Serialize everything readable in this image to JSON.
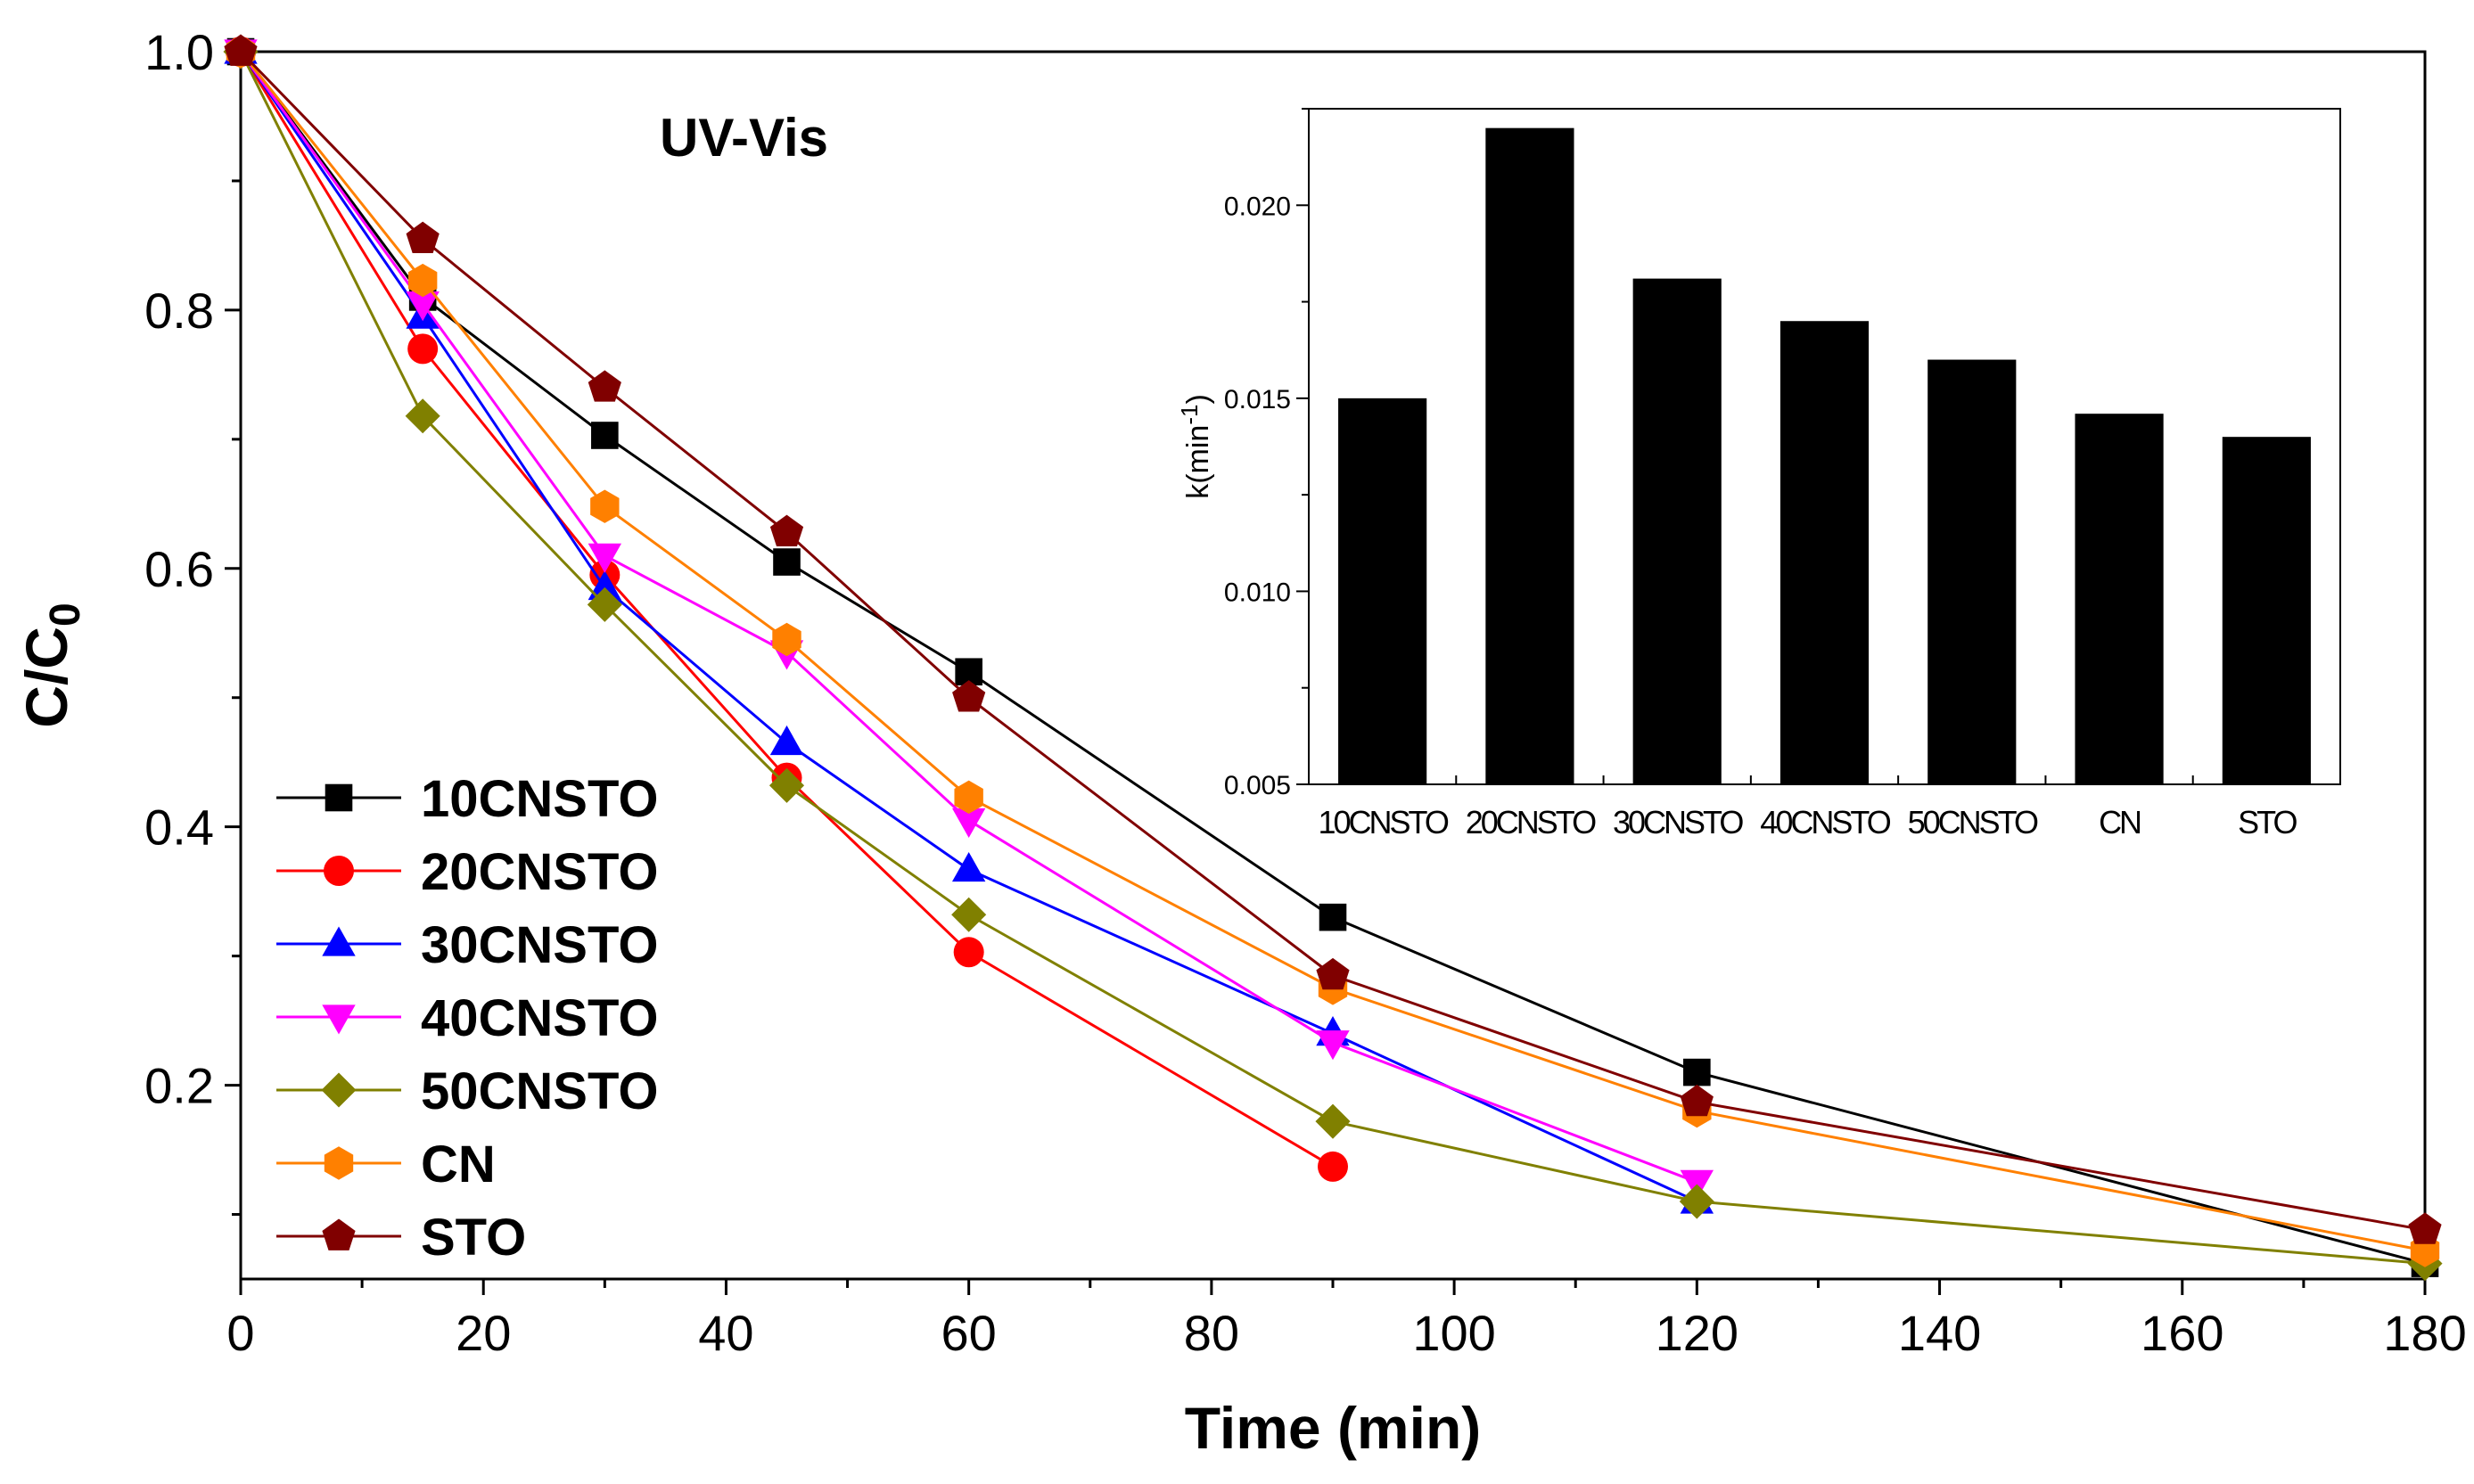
{
  "chart_data": [
    {
      "type": "line",
      "annotation": "UV-Vis",
      "xlabel": "Time (min)",
      "ylabel_main": "C/C",
      "ylabel_sub": "0",
      "xlim": [
        0,
        180
      ],
      "ylim": [
        0.05,
        1.0
      ],
      "x_ticks": [
        0,
        20,
        40,
        60,
        80,
        100,
        120,
        140,
        160,
        180
      ],
      "y_ticks": [
        0.2,
        0.4,
        0.6,
        0.8,
        1.0
      ],
      "x_tick_labels": [
        "0",
        "20",
        "40",
        "60",
        "80",
        "100",
        "120",
        "140",
        "160",
        "180"
      ],
      "y_tick_labels": [
        "0.2",
        "0.4",
        "0.6",
        "0.8",
        "1.0"
      ],
      "legend_position": "lower-left",
      "series": [
        {
          "name": "10CNSTO",
          "color": "#000000",
          "marker": "square",
          "x": [
            0,
            15,
            30,
            45,
            60,
            90,
            120,
            180
          ],
          "y": [
            1.0,
            0.81,
            0.703,
            0.605,
            0.52,
            0.33,
            0.21,
            0.062
          ]
        },
        {
          "name": "20CNSTO",
          "color": "#ff0000",
          "marker": "circle",
          "x": [
            0,
            15,
            30,
            45,
            60,
            90
          ],
          "y": [
            1.0,
            0.77,
            0.595,
            0.438,
            0.303,
            0.137
          ]
        },
        {
          "name": "30CNSTO",
          "color": "#0000ff",
          "marker": "triangle-up",
          "x": [
            0,
            15,
            30,
            45,
            60,
            90,
            120
          ],
          "y": [
            1.0,
            0.795,
            0.585,
            0.465,
            0.367,
            0.24,
            0.11
          ]
        },
        {
          "name": "40CNSTO",
          "color": "#ff00ff",
          "marker": "triangle-down",
          "x": [
            0,
            15,
            30,
            45,
            60,
            90,
            120
          ],
          "y": [
            1.0,
            0.805,
            0.61,
            0.535,
            0.405,
            0.233,
            0.125
          ]
        },
        {
          "name": "50CNSTO",
          "color": "#808000",
          "marker": "diamond",
          "x": [
            0,
            15,
            30,
            45,
            60,
            90,
            120,
            180
          ],
          "y": [
            1.0,
            0.718,
            0.572,
            0.432,
            0.332,
            0.172,
            0.11,
            0.062
          ]
        },
        {
          "name": "CN",
          "color": "#ff8000",
          "marker": "hexagon",
          "x": [
            0,
            15,
            30,
            45,
            60,
            90,
            120,
            180
          ],
          "y": [
            1.0,
            0.823,
            0.648,
            0.545,
            0.423,
            0.275,
            0.18,
            0.072
          ]
        },
        {
          "name": "STO",
          "color": "#800000",
          "marker": "pentagon",
          "x": [
            0,
            15,
            30,
            45,
            60,
            90,
            120,
            180
          ],
          "y": [
            1.0,
            0.855,
            0.74,
            0.628,
            0.5,
            0.285,
            0.187,
            0.088
          ]
        }
      ]
    },
    {
      "type": "bar",
      "position": "inset top-right",
      "ylabel": "k(min",
      "ylabel_sup": "-1",
      "ylabel_close": ")",
      "ylim": [
        0.005,
        0.0225
      ],
      "y_ticks": [
        0.005,
        0.01,
        0.015,
        0.02
      ],
      "y_tick_labels": [
        "0.005",
        "0.010",
        "0.015",
        "0.020"
      ],
      "bar_color": "#000000",
      "categories": [
        "10CNSTO",
        "20CNSTO",
        "30CNSTO",
        "40CNSTO",
        "50CNSTO",
        "CN",
        "STO"
      ],
      "values": [
        0.015,
        0.022,
        0.0181,
        0.017,
        0.016,
        0.0146,
        0.014
      ]
    }
  ]
}
